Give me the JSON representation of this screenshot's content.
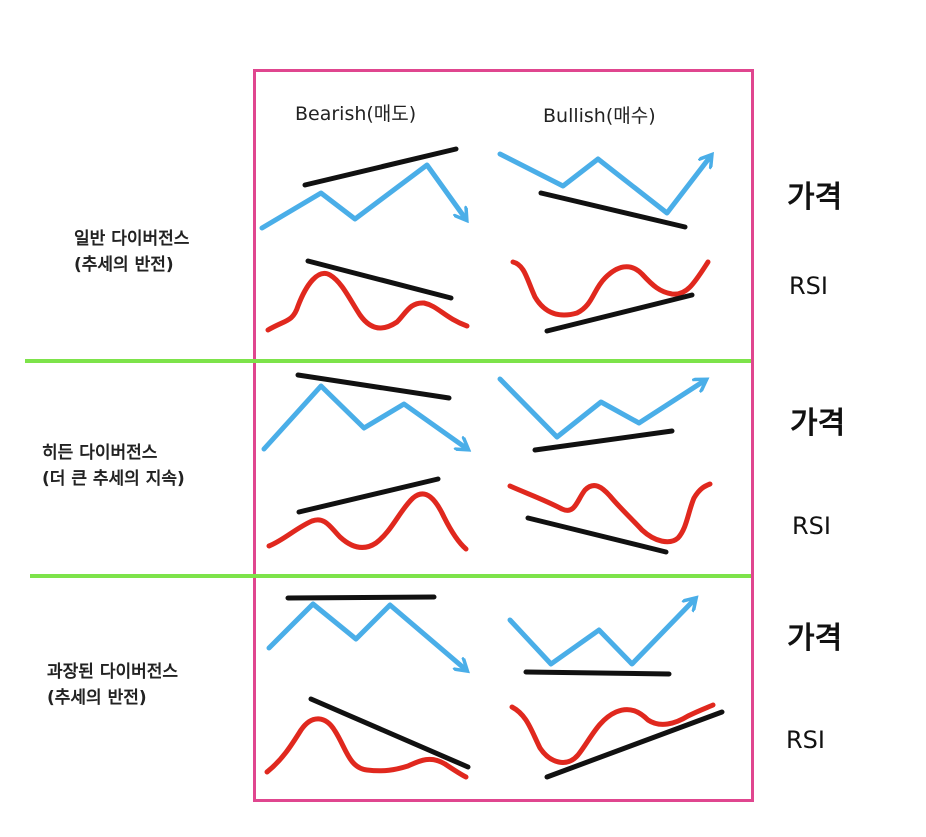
{
  "columns": {
    "bearish": "Bearish(매도)",
    "bullish": "Bullish(매수)"
  },
  "rows": [
    {
      "line1": "일반 다이버전스",
      "line2": "(추세의 반전)",
      "price_label": "가격",
      "rsi_label": "RSI"
    },
    {
      "line1": "히든 다이버전스",
      "line2": "(더 큰 추세의 지속)",
      "price_label": "가격",
      "rsi_label": "RSI"
    },
    {
      "line1": "과장된 다이버전스",
      "line2": "(추세의 반전)",
      "price_label": "가격",
      "rsi_label": "RSI"
    }
  ],
  "colors": {
    "frame": "#e0468f",
    "divider": "#7de34a",
    "price_line": "#4aaee8",
    "rsi_line": "#e0281e",
    "trend_line": "#111111"
  }
}
